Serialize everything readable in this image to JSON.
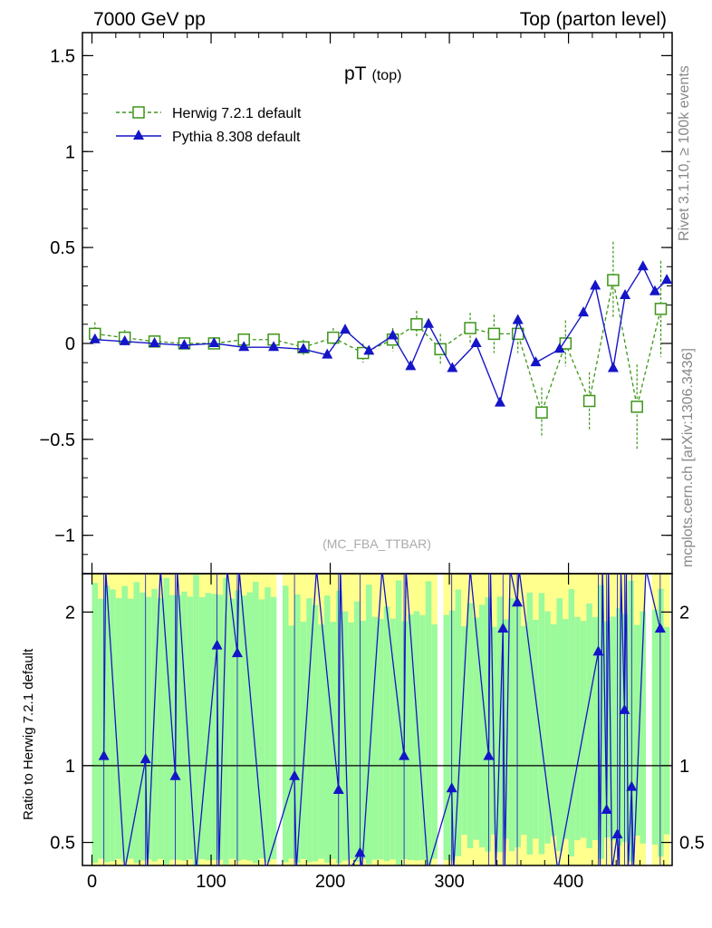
{
  "header": {
    "left": "7000 GeV pp",
    "right": "Top (parton level)"
  },
  "side_labels": {
    "rivet": "Rivet 3.1.10, ≥ 100k events",
    "mcplots": "mcplots.cern.ch [arXiv:1306.3436]"
  },
  "chart_data": {
    "type": "scatter",
    "title": "pT",
    "title_sub": "(top)",
    "watermark": "(MC_FBA_TTBAR)",
    "legend_position": "top-left",
    "main_panel": {
      "xlim": [
        -8,
        487
      ],
      "ylim": [
        -1.2,
        1.62
      ],
      "yticks": [
        -1,
        -0.5,
        0,
        0.5,
        1,
        1.5
      ],
      "ytick_labels": [
        "−1",
        "−0.5",
        "0",
        "0.5",
        "1",
        "1.5"
      ],
      "series": [
        {
          "name": "Herwig 7.2.1 default",
          "color": "#3c9618",
          "marker": "open-square",
          "line": "dashed",
          "x": [
            2.5,
            27.5,
            52.5,
            77.5,
            102.5,
            127.5,
            152.5,
            177.5,
            202.5,
            227.5,
            252.5,
            272.5,
            292.5,
            317.5,
            337.5,
            357.5,
            377.5,
            397.5,
            417.5,
            437.5,
            457.5,
            477.5
          ],
          "y": [
            0.05,
            0.03,
            0.01,
            0.0,
            0.0,
            0.02,
            0.02,
            -0.02,
            0.03,
            -0.05,
            0.02,
            0.1,
            -0.03,
            0.08,
            0.05,
            0.05,
            -0.36,
            0.0,
            -0.3,
            0.33,
            -0.33,
            0.18
          ],
          "err": [
            0.06,
            0.04,
            0.03,
            0.03,
            0.03,
            0.03,
            0.03,
            0.04,
            0.05,
            0.05,
            0.06,
            0.07,
            0.08,
            0.08,
            0.1,
            0.1,
            0.13,
            0.12,
            0.15,
            0.2,
            0.22,
            0.25
          ]
        },
        {
          "name": "Pythia 8.308 default",
          "color": "#1414c8",
          "marker": "filled-triangle",
          "line": "solid",
          "x": [
            2.5,
            27.5,
            52.5,
            77.5,
            102.5,
            127.5,
            152.5,
            177.5,
            197.5,
            212.5,
            232.5,
            252.5,
            267.5,
            282.5,
            302.5,
            322.5,
            342.5,
            357.5,
            372.5,
            392.5,
            412.5,
            422.5,
            437.5,
            447.5,
            462.5,
            472.5,
            482.5
          ],
          "y": [
            0.02,
            0.01,
            0.0,
            -0.01,
            0.0,
            -0.02,
            -0.02,
            -0.03,
            -0.06,
            0.07,
            -0.04,
            0.04,
            -0.12,
            0.1,
            -0.13,
            0.0,
            -0.31,
            0.12,
            -0.1,
            -0.03,
            0.16,
            0.3,
            -0.13,
            0.25,
            0.4,
            0.27,
            0.33
          ]
        }
      ]
    },
    "ratio_panel": {
      "ylabel": "Ratio to Herwig 7.2.1 default",
      "xlabel": "",
      "xlim": [
        -8,
        487
      ],
      "ylim": [
        0.35,
        2.25
      ],
      "yticks": [
        0.5,
        1,
        2
      ],
      "ytick_labels": [
        "0.5",
        "1",
        "2"
      ],
      "xticks": [
        0,
        100,
        200,
        300,
        400
      ],
      "xtick_labels": [
        "0",
        "100",
        "200",
        "300",
        "400"
      ],
      "pythia_points": [
        {
          "x": 10,
          "y": 1.06
        },
        {
          "x": 45,
          "y": 1.04
        },
        {
          "x": 70,
          "y": 0.93
        },
        {
          "x": 105,
          "y": 1.78
        },
        {
          "x": 122,
          "y": 1.73
        },
        {
          "x": 170,
          "y": 0.93
        },
        {
          "x": 207,
          "y": 0.84
        },
        {
          "x": 225,
          "y": 0.43
        },
        {
          "x": 262,
          "y": 1.06
        },
        {
          "x": 302,
          "y": 0.85
        },
        {
          "x": 333,
          "y": 1.06
        },
        {
          "x": 345,
          "y": 1.89
        },
        {
          "x": 357,
          "y": 2.06
        },
        {
          "x": 425,
          "y": 1.74
        },
        {
          "x": 432,
          "y": 0.71
        },
        {
          "x": 441,
          "y": 0.55
        },
        {
          "x": 447,
          "y": 1.36
        },
        {
          "x": 453,
          "y": 0.86
        },
        {
          "x": 477,
          "y": 1.89
        }
      ]
    }
  }
}
